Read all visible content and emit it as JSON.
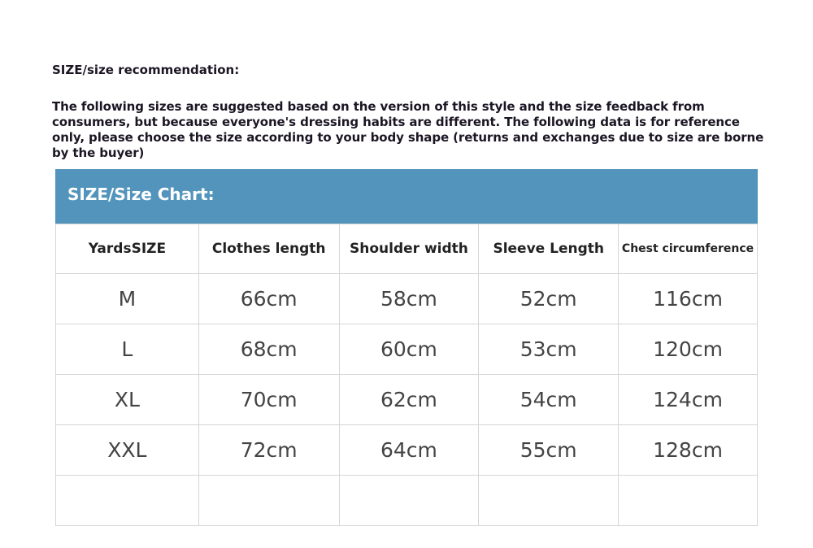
{
  "heading": "SIZE/size recommendation:",
  "note": "The following sizes are suggested based on the version of this style and the size feedback from consumers, but because everyone's dressing habits are different. The following data is for reference only, please choose the size according to your body shape (returns and exchanges due to size are borne by the buyer)",
  "chart_title": "SIZE/Size Chart:",
  "header_color": "#5394bc",
  "columns": [
    "YardsSIZE",
    "Clothes length",
    "Shoulder width",
    "Sleeve Length",
    "Chest circumference"
  ],
  "rows": [
    [
      "M",
      "66cm",
      "58cm",
      "52cm",
      "116cm"
    ],
    [
      "L",
      "68cm",
      "60cm",
      "53cm",
      "120cm"
    ],
    [
      "XL",
      "70cm",
      "62cm",
      "54cm",
      "124cm"
    ],
    [
      "XXL",
      "72cm",
      "64cm",
      "55cm",
      "128cm"
    ],
    [
      "",
      "",
      "",
      "",
      ""
    ]
  ]
}
